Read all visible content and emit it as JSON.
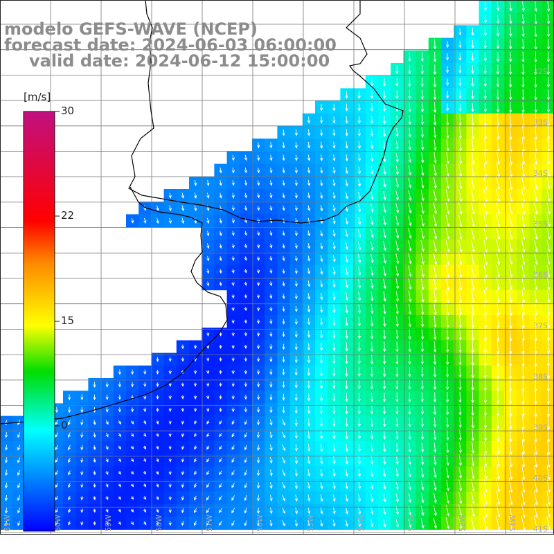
{
  "title": {
    "line1": "modelo GEFS-WAVE (NCEP)",
    "line2": "forecast date: 2024-06-03 06:00:00",
    "line3": "valid date: 2024-06-12 15:00:00"
  },
  "colorbar": {
    "unit": "[m/s]",
    "ticks": [
      "30",
      "22",
      "15",
      "0"
    ],
    "colors": [
      "#c01080",
      "#ff0000",
      "#ff8800",
      "#ffff00",
      "#00dd00",
      "#00ffff",
      "#0000ff"
    ]
  },
  "lat_labels": [
    "32S",
    "33S",
    "34S",
    "35S",
    "36S",
    "37S",
    "38S",
    "39S",
    "40S",
    "41S"
  ],
  "lon_labels": [
    "61W",
    "60W",
    "59W",
    "58W",
    "57W",
    "56W",
    "55W",
    "54W",
    "53W",
    "52W",
    "51W"
  ],
  "colors": {
    "land": "#ffffff",
    "coast": "#000000",
    "grid": "#777777",
    "arrow": "#ffffff",
    "title": "#8c8c8c"
  }
}
